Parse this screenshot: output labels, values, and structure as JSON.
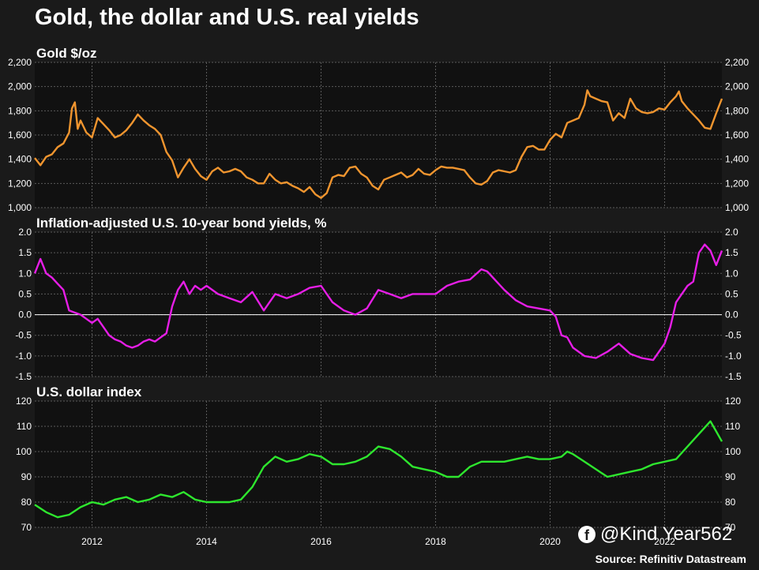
{
  "title": "Gold, the dollar and U.S. real yields",
  "source": "Source: Refinitiv Datastream",
  "watermark": "@Kind Year562",
  "watermark_icon": "facebook-icon",
  "colors": {
    "background": "#1a1a1a",
    "plot_bg": "#111111",
    "grid": "#5a5a5a",
    "gold": "#f0952f",
    "real_yield": "#e61ee6",
    "dollar": "#2ee62e",
    "zero_line": "#ffffff"
  },
  "chart_data": [
    {
      "type": "line",
      "title": "Gold $/oz",
      "ylim": [
        1000,
        2200
      ],
      "yticks": [
        "1,000",
        "1,200",
        "1,400",
        "1,600",
        "1,800",
        "2,000",
        "2,200"
      ],
      "ytick_values": [
        1000,
        1200,
        1400,
        1600,
        1800,
        2000,
        2200
      ],
      "xlim": [
        2011.0,
        2023.0
      ],
      "xticks": [
        "2012",
        "2014",
        "2016",
        "2018",
        "2020",
        "2022"
      ],
      "grid": true,
      "series": [
        {
          "x": [
            2011.0,
            2011.1,
            2011.2,
            2011.3,
            2011.4,
            2011.5,
            2011.6,
            2011.65,
            2011.7,
            2011.75,
            2011.8,
            2011.9,
            2012.0,
            2012.1,
            2012.2,
            2012.3,
            2012.4,
            2012.5,
            2012.6,
            2012.7,
            2012.8,
            2012.9,
            2013.0,
            2013.1,
            2013.2,
            2013.3,
            2013.4,
            2013.5,
            2013.6,
            2013.7,
            2013.8,
            2013.9,
            2014.0,
            2014.1,
            2014.2,
            2014.3,
            2014.4,
            2014.5,
            2014.6,
            2014.7,
            2014.8,
            2014.9,
            2015.0,
            2015.1,
            2015.2,
            2015.3,
            2015.4,
            2015.5,
            2015.6,
            2015.7,
            2015.8,
            2015.9,
            2016.0,
            2016.1,
            2016.2,
            2016.3,
            2016.4,
            2016.5,
            2016.6,
            2016.7,
            2016.8,
            2016.9,
            2017.0,
            2017.1,
            2017.2,
            2017.3,
            2017.4,
            2017.5,
            2017.6,
            2017.7,
            2017.8,
            2017.9,
            2018.0,
            2018.1,
            2018.2,
            2018.3,
            2018.4,
            2018.5,
            2018.6,
            2018.7,
            2018.8,
            2018.9,
            2019.0,
            2019.1,
            2019.2,
            2019.3,
            2019.4,
            2019.5,
            2019.6,
            2019.7,
            2019.8,
            2019.9,
            2020.0,
            2020.1,
            2020.2,
            2020.3,
            2020.4,
            2020.5,
            2020.6,
            2020.65,
            2020.7,
            2020.8,
            2020.9,
            2021.0,
            2021.1,
            2021.2,
            2021.3,
            2021.4,
            2021.5,
            2021.6,
            2021.7,
            2021.8,
            2021.9,
            2022.0,
            2022.1,
            2022.2,
            2022.25,
            2022.3,
            2022.4,
            2022.5,
            2022.6,
            2022.7,
            2022.8,
            2022.9,
            2023.0
          ],
          "y": [
            1410,
            1350,
            1420,
            1440,
            1500,
            1530,
            1620,
            1820,
            1870,
            1650,
            1720,
            1620,
            1580,
            1740,
            1690,
            1640,
            1580,
            1600,
            1640,
            1700,
            1770,
            1720,
            1680,
            1650,
            1600,
            1460,
            1390,
            1250,
            1330,
            1400,
            1320,
            1260,
            1230,
            1300,
            1330,
            1290,
            1300,
            1320,
            1300,
            1250,
            1230,
            1200,
            1200,
            1280,
            1230,
            1200,
            1210,
            1180,
            1160,
            1130,
            1170,
            1110,
            1080,
            1120,
            1250,
            1270,
            1260,
            1330,
            1340,
            1280,
            1250,
            1180,
            1150,
            1230,
            1250,
            1270,
            1290,
            1250,
            1270,
            1320,
            1280,
            1270,
            1310,
            1340,
            1330,
            1330,
            1320,
            1310,
            1250,
            1200,
            1190,
            1220,
            1290,
            1310,
            1300,
            1290,
            1310,
            1420,
            1500,
            1510,
            1480,
            1480,
            1560,
            1610,
            1580,
            1700,
            1720,
            1740,
            1850,
            1970,
            1920,
            1900,
            1880,
            1870,
            1720,
            1780,
            1740,
            1900,
            1820,
            1790,
            1780,
            1790,
            1820,
            1810,
            1870,
            1920,
            1960,
            1880,
            1820,
            1770,
            1720,
            1660,
            1650,
            1780,
            1900
          ],
          "stroke_key": "gold"
        }
      ]
    },
    {
      "type": "line",
      "title": "Inflation-adjusted U.S. 10-year bond yields, %",
      "ylim": [
        -1.5,
        2.0
      ],
      "yticks": [
        "-1.5",
        "-1.0",
        "-0.5",
        "0.0",
        "0.5",
        "1.0",
        "1.5",
        "2.0"
      ],
      "ytick_values": [
        -1.5,
        -1.0,
        -0.5,
        0.0,
        0.5,
        1.0,
        1.5,
        2.0
      ],
      "xlim": [
        2011.0,
        2023.0
      ],
      "xticks": [
        "2012",
        "2014",
        "2016",
        "2018",
        "2020",
        "2022"
      ],
      "grid": true,
      "series": [
        {
          "x": [
            2011.0,
            2011.1,
            2011.2,
            2011.3,
            2011.4,
            2011.5,
            2011.6,
            2011.7,
            2011.8,
            2011.9,
            2012.0,
            2012.1,
            2012.2,
            2012.3,
            2012.4,
            2012.5,
            2012.6,
            2012.7,
            2012.8,
            2012.9,
            2013.0,
            2013.1,
            2013.2,
            2013.3,
            2013.4,
            2013.5,
            2013.6,
            2013.7,
            2013.8,
            2013.9,
            2014.0,
            2014.2,
            2014.4,
            2014.6,
            2014.8,
            2015.0,
            2015.2,
            2015.4,
            2015.6,
            2015.8,
            2016.0,
            2016.2,
            2016.4,
            2016.6,
            2016.8,
            2017.0,
            2017.2,
            2017.4,
            2017.6,
            2017.8,
            2018.0,
            2018.2,
            2018.4,
            2018.6,
            2018.8,
            2018.9,
            2019.0,
            2019.2,
            2019.4,
            2019.6,
            2019.8,
            2020.0,
            2020.1,
            2020.2,
            2020.3,
            2020.4,
            2020.6,
            2020.8,
            2021.0,
            2021.2,
            2021.4,
            2021.6,
            2021.8,
            2022.0,
            2022.1,
            2022.2,
            2022.3,
            2022.4,
            2022.5,
            2022.6,
            2022.7,
            2022.8,
            2022.9,
            2023.0
          ],
          "y": [
            1.0,
            1.35,
            1.0,
            0.9,
            0.75,
            0.6,
            0.1,
            0.05,
            0.0,
            -0.1,
            -0.2,
            -0.1,
            -0.3,
            -0.5,
            -0.6,
            -0.65,
            -0.75,
            -0.8,
            -0.75,
            -0.65,
            -0.6,
            -0.65,
            -0.55,
            -0.45,
            0.2,
            0.6,
            0.8,
            0.5,
            0.7,
            0.6,
            0.7,
            0.5,
            0.4,
            0.3,
            0.55,
            0.1,
            0.5,
            0.4,
            0.5,
            0.65,
            0.7,
            0.3,
            0.1,
            0.0,
            0.15,
            0.6,
            0.5,
            0.4,
            0.5,
            0.5,
            0.5,
            0.7,
            0.8,
            0.85,
            1.1,
            1.05,
            0.9,
            0.6,
            0.35,
            0.2,
            0.15,
            0.1,
            -0.05,
            -0.5,
            -0.55,
            -0.8,
            -1.0,
            -1.05,
            -0.9,
            -0.7,
            -0.95,
            -1.05,
            -1.1,
            -0.7,
            -0.3,
            0.3,
            0.5,
            0.7,
            0.8,
            1.5,
            1.7,
            1.55,
            1.2,
            1.55
          ],
          "stroke_key": "real_yield"
        }
      ]
    },
    {
      "type": "line",
      "title": "U.S. dollar index",
      "ylim": [
        70,
        120
      ],
      "yticks": [
        "70",
        "80",
        "90",
        "100",
        "110",
        "120"
      ],
      "ytick_values": [
        70,
        80,
        90,
        100,
        110,
        120
      ],
      "xlim": [
        2011.0,
        2023.0
      ],
      "xticks": [
        "2012",
        "2014",
        "2016",
        "2018",
        "2020",
        "2022"
      ],
      "grid": true,
      "series": [
        {
          "x": [
            2011.0,
            2011.2,
            2011.4,
            2011.6,
            2011.8,
            2012.0,
            2012.2,
            2012.4,
            2012.6,
            2012.8,
            2013.0,
            2013.2,
            2013.4,
            2013.6,
            2013.8,
            2014.0,
            2014.2,
            2014.4,
            2014.6,
            2014.8,
            2015.0,
            2015.2,
            2015.4,
            2015.6,
            2015.8,
            2016.0,
            2016.2,
            2016.4,
            2016.6,
            2016.8,
            2017.0,
            2017.2,
            2017.4,
            2017.6,
            2017.8,
            2018.0,
            2018.2,
            2018.4,
            2018.6,
            2018.8,
            2019.0,
            2019.2,
            2019.4,
            2019.6,
            2019.8,
            2020.0,
            2020.2,
            2020.3,
            2020.4,
            2020.6,
            2020.8,
            2021.0,
            2021.2,
            2021.4,
            2021.6,
            2021.8,
            2022.0,
            2022.2,
            2022.4,
            2022.6,
            2022.8,
            2022.9,
            2023.0
          ],
          "y": [
            79,
            76,
            74,
            75,
            78,
            80,
            79,
            81,
            82,
            80,
            81,
            83,
            82,
            84,
            81,
            80,
            80,
            80,
            81,
            86,
            94,
            98,
            96,
            97,
            99,
            98,
            95,
            95,
            96,
            98,
            102,
            101,
            98,
            94,
            93,
            92,
            90,
            90,
            94,
            96,
            96,
            96,
            97,
            98,
            97,
            97,
            98,
            100,
            99,
            96,
            93,
            90,
            91,
            92,
            93,
            95,
            96,
            97,
            102,
            107,
            112,
            108,
            104
          ],
          "stroke_key": "dollar"
        }
      ]
    }
  ]
}
